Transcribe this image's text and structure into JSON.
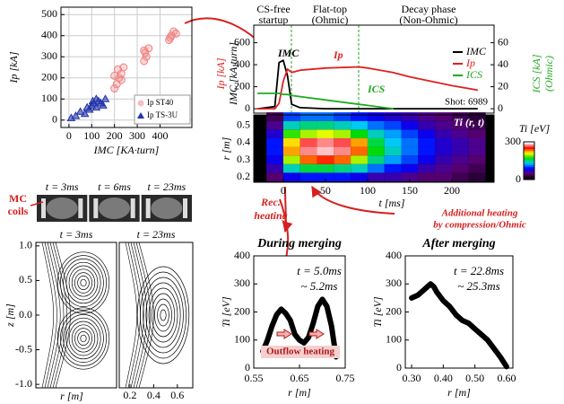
{
  "chart_data": [
    {
      "type": "scatter",
      "xlabel": "IMC [KA·turn]",
      "ylabel": "Ip [kA]",
      "xlim": [
        -35,
        540
      ],
      "ylim": [
        -35,
        535
      ],
      "xticks": [
        0,
        100,
        200,
        300,
        400
      ],
      "yticks": [
        0,
        100,
        200,
        300,
        400,
        500
      ],
      "grid": true,
      "legend": "lower right",
      "series": [
        {
          "name": "Ip ST40",
          "color": "#f08080",
          "marker": "circle",
          "x": [
            200,
            210,
            220,
            230,
            200,
            215,
            240,
            230,
            330,
            340,
            335,
            350,
            330,
            440,
            450,
            460,
            445,
            470
          ],
          "y": [
            150,
            170,
            200,
            220,
            210,
            240,
            250,
            190,
            280,
            300,
            320,
            340,
            330,
            380,
            400,
            420,
            390,
            410
          ]
        },
        {
          "name": "Ip TS-3U",
          "color": "#2233aa",
          "marker": "triangle",
          "x": [
            10,
            30,
            50,
            70,
            80,
            90,
            100,
            105,
            110,
            120,
            120,
            130,
            140,
            150,
            160
          ],
          "y": [
            10,
            20,
            40,
            30,
            60,
            50,
            70,
            90,
            80,
            60,
            100,
            90,
            80,
            70,
            100
          ]
        }
      ]
    },
    {
      "type": "line",
      "xlim": [
        -35,
        250
      ],
      "ylim": [
        -40,
        760
      ],
      "yticks": [
        0,
        200,
        400,
        600
      ],
      "y2lim": [
        -4,
        76
      ],
      "y2ticks": [
        0,
        20,
        40,
        60
      ],
      "ylabels": [
        {
          "text": "Ip [kA]",
          "color": "#e02020"
        },
        {
          "text": "IMC [kA·turn]",
          "color": "#000000"
        }
      ],
      "y2labels": [
        {
          "text": "ICS [kA]",
          "color": "#22aa22"
        },
        {
          "text": "(Ohmic)",
          "color": "#22aa22"
        }
      ],
      "annotations": [
        "CS-free",
        "startup",
        "Flat-top",
        "(Ohmic)",
        "Decay phase",
        "(Non-Ohmic)",
        "Shot: 6989"
      ],
      "x": [
        -30,
        -10,
        -5,
        0,
        5,
        10,
        20,
        50,
        90,
        100,
        130,
        150,
        200,
        230
      ],
      "series": [
        {
          "name": "IMC",
          "color": "#000000",
          "values": [
            0,
            20,
            420,
            440,
            300,
            40,
            10,
            0,
            0,
            0,
            0,
            0,
            0,
            0
          ]
        },
        {
          "name": "Ip",
          "color": "#e02020",
          "values": [
            0,
            0,
            50,
            250,
            360,
            330,
            350,
            370,
            380,
            370,
            330,
            290,
            210,
            170
          ]
        },
        {
          "name": "ICS",
          "color": "#22aa22",
          "axis": "y2",
          "values": [
            14,
            14,
            14,
            13,
            13,
            12,
            11,
            8,
            4,
            3,
            0,
            null,
            null,
            null
          ]
        }
      ]
    },
    {
      "type": "heatmap",
      "label": "Ti (r, t)",
      "xlabel": "t [ms]",
      "ylabel": "r [m]",
      "colorbar_label": "Ti [eV]",
      "xlim": [
        -35,
        250
      ],
      "xticks": [
        0,
        50,
        100,
        150,
        200
      ],
      "ylim": [
        0.17,
        0.56
      ],
      "yticks": [
        0.2,
        0.3,
        0.4,
        0.5
      ],
      "zlim": [
        0,
        300
      ],
      "zticks": [
        0,
        300
      ],
      "x": [
        -10,
        10,
        30,
        50,
        70,
        90,
        110,
        130,
        150,
        170,
        190,
        210,
        230
      ],
      "y": [
        0.2,
        0.25,
        0.3,
        0.35,
        0.4,
        0.45,
        0.5,
        0.55
      ],
      "z": [
        [
          40,
          80,
          90,
          90,
          90,
          80,
          60,
          60,
          50,
          40,
          40,
          30,
          20
        ],
        [
          60,
          140,
          160,
          160,
          150,
          140,
          110,
          90,
          80,
          60,
          50,
          40,
          30
        ],
        [
          80,
          200,
          240,
          250,
          240,
          200,
          150,
          120,
          100,
          80,
          60,
          50,
          40
        ],
        [
          90,
          230,
          280,
          290,
          280,
          240,
          170,
          140,
          110,
          90,
          70,
          60,
          50
        ],
        [
          90,
          220,
          270,
          280,
          270,
          230,
          160,
          130,
          110,
          90,
          70,
          60,
          50
        ],
        [
          70,
          180,
          200,
          210,
          200,
          170,
          140,
          120,
          100,
          80,
          60,
          50,
          40
        ],
        [
          50,
          140,
          150,
          150,
          140,
          130,
          110,
          100,
          80,
          60,
          50,
          40,
          30
        ],
        [
          30,
          100,
          110,
          110,
          100,
          90,
          80,
          70,
          60,
          50,
          40,
          30,
          20
        ]
      ]
    },
    {
      "type": "image",
      "frames": [
        "t = 3ms",
        "t = 6ms",
        "t = 23ms"
      ],
      "label": [
        "MC",
        "coils"
      ]
    },
    {
      "type": "contour",
      "panels": [
        "t = 3ms",
        "t = 23ms"
      ],
      "xlabel": "r [m]",
      "ylabel": "z [m]",
      "xlim": [
        0.11,
        0.73
      ],
      "xticks": [
        0.2,
        0.4,
        0.6
      ],
      "ylim": [
        -1.05,
        1.05
      ],
      "yticks": [
        {
          "value": 1,
          "label": "1.0"
        },
        0.5,
        {
          "value": 0,
          "label": "0.0"
        },
        -0.5,
        {
          "value": -1,
          "label": "-1.0"
        }
      ]
    },
    {
      "type": "line",
      "title": "During merging",
      "xlabel": "r [m]",
      "ylabel": "Ti [eV]",
      "xlim": [
        0.55,
        0.75
      ],
      "xticks": [
        0.55,
        0.65,
        0.75
      ],
      "ylim": [
        0,
        400
      ],
      "yticks": [
        0,
        100,
        200,
        300,
        400
      ],
      "annotations": [
        "t = 5.0ms",
        "~ 5.2ms",
        "Outflow heating"
      ],
      "x": [
        0.57,
        0.58,
        0.59,
        0.6,
        0.61,
        0.62,
        0.63,
        0.64,
        0.65,
        0.66,
        0.67,
        0.68,
        0.69,
        0.7,
        0.71,
        0.72,
        0.73
      ],
      "series": [
        {
          "color": "#000000",
          "values": [
            60,
            100,
            150,
            190,
            210,
            195,
            170,
            120,
            100,
            90,
            110,
            160,
            220,
            245,
            220,
            150,
            40
          ]
        }
      ]
    },
    {
      "type": "line",
      "title": "After merging",
      "xlabel": "r [m]",
      "ylabel": "Ti [eV]",
      "xlim": [
        0.28,
        0.62
      ],
      "xticks": [
        {
          "value": 0.3,
          "label": "0.30"
        },
        {
          "value": 0.4,
          "label": "0.40"
        },
        {
          "value": 0.5,
          "label": "0.50"
        },
        {
          "value": 0.6,
          "label": "0.60"
        }
      ],
      "ylim": [
        0,
        400
      ],
      "yticks": [
        0,
        100,
        200,
        300,
        400
      ],
      "annotations": [
        "t = 22.8ms",
        "~ 25.3ms"
      ],
      "x": [
        0.3,
        0.32,
        0.34,
        0.36,
        0.37,
        0.38,
        0.4,
        0.42,
        0.44,
        0.46,
        0.48,
        0.5,
        0.52,
        0.54,
        0.56,
        0.58,
        0.6
      ],
      "series": [
        {
          "color": "#000000",
          "values": [
            250,
            260,
            280,
            300,
            290,
            270,
            240,
            220,
            190,
            170,
            160,
            140,
            120,
            100,
            70,
            40,
            5
          ]
        }
      ]
    }
  ],
  "annotations": [
    "Rec.",
    "heating",
    "Additional heating",
    "by compression/Ohmic"
  ]
}
